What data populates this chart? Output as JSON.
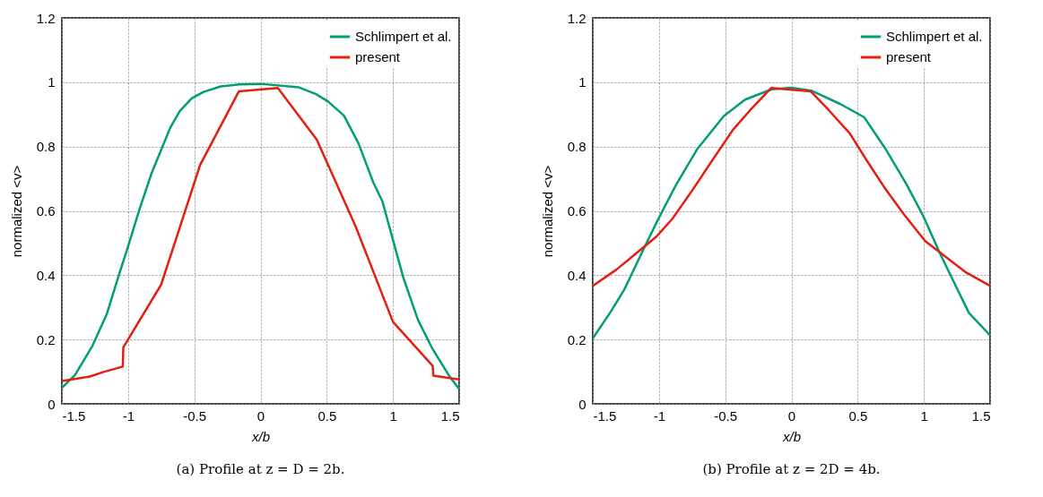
{
  "chart_data": [
    {
      "type": "line",
      "title": "(a) Profile at z = D = 2b.",
      "xlabel": "x/b",
      "ylabel": "normalized  <v>",
      "xlim": [
        -1.5,
        1.5
      ],
      "ylim": [
        0,
        1.2
      ],
      "xticks": [
        -1.5,
        -1,
        -0.5,
        0,
        0.5,
        1,
        1.5
      ],
      "yticks": [
        0,
        0.2,
        0.4,
        0.6,
        0.8,
        1,
        1.2
      ],
      "grid": true,
      "legend": "top right",
      "line_style": "solid",
      "series": [
        {
          "name": "Schlimpert et al.",
          "color": "#009e73",
          "x": [
            -1.5,
            -1.4,
            -1.27,
            -1.16,
            -1.07,
            -1.0,
            -0.91,
            -0.82,
            -0.75,
            -0.68,
            -0.61,
            -0.52,
            -0.43,
            -0.3,
            -0.16,
            0,
            0.29,
            0.42,
            0.51,
            0.63,
            0.74,
            0.85,
            0.92,
            1.0,
            1.08,
            1.19,
            1.3,
            1.42,
            1.5
          ],
          "values": [
            0.05,
            0.09,
            0.18,
            0.28,
            0.4,
            0.49,
            0.61,
            0.72,
            0.79,
            0.86,
            0.91,
            0.95,
            0.97,
            0.987,
            0.993,
            0.995,
            0.984,
            0.963,
            0.94,
            0.896,
            0.81,
            0.69,
            0.63,
            0.51,
            0.39,
            0.26,
            0.17,
            0.09,
            0.046
          ]
        },
        {
          "name": "present",
          "color": "#e51e10",
          "x": [
            -1.5,
            -1.29,
            -1.18,
            -1.04,
            -1.036,
            -0.75,
            -0.456,
            -0.163,
            0.131,
            0.424,
            0.718,
            1.0,
            1.3,
            1.305,
            1.5
          ],
          "values": [
            0.071,
            0.085,
            0.1,
            0.116,
            0.176,
            0.371,
            0.743,
            0.972,
            0.982,
            0.822,
            0.552,
            0.255,
            0.118,
            0.088,
            0.076
          ]
        }
      ]
    },
    {
      "type": "line",
      "title": "(b) Profile at z = 2D = 4b.",
      "xlabel": "x/b",
      "ylabel": "normalized  <v>",
      "xlim": [
        -1.5,
        1.5
      ],
      "ylim": [
        0,
        1.2
      ],
      "xticks": [
        -1.5,
        -1,
        -0.5,
        0,
        0.5,
        1,
        1.5
      ],
      "yticks": [
        0,
        0.2,
        0.4,
        0.6,
        0.8,
        1,
        1.2
      ],
      "grid": true,
      "legend": "top right",
      "line_style": "solid",
      "series": [
        {
          "name": "Schlimpert et al.",
          "color": "#009e73",
          "x": [
            -1.5,
            -1.37,
            -1.26,
            -1.12,
            -1.01,
            -0.87,
            -0.71,
            -0.51,
            -0.35,
            -0.15,
            0,
            0.15,
            0.37,
            0.55,
            0.71,
            0.87,
            1.0,
            1.12,
            1.23,
            1.34,
            1.5
          ],
          "values": [
            0.204,
            0.283,
            0.357,
            0.478,
            0.571,
            0.682,
            0.793,
            0.895,
            0.946,
            0.978,
            0.983,
            0.974,
            0.932,
            0.891,
            0.793,
            0.682,
            0.58,
            0.469,
            0.376,
            0.283,
            0.213
          ]
        },
        {
          "name": "present",
          "color": "#e51e10",
          "x": [
            -1.5,
            -1.32,
            -1.21,
            -1.02,
            -0.9,
            -0.75,
            -0.6,
            -0.44,
            -0.31,
            -0.154,
            0.145,
            0.28,
            0.44,
            0.57,
            0.71,
            0.85,
            1.01,
            1.16,
            1.32,
            1.5
          ],
          "values": [
            0.367,
            0.418,
            0.455,
            0.52,
            0.575,
            0.663,
            0.756,
            0.853,
            0.914,
            0.982,
            0.972,
            0.914,
            0.841,
            0.756,
            0.668,
            0.589,
            0.506,
            0.459,
            0.408,
            0.367
          ]
        }
      ]
    }
  ]
}
